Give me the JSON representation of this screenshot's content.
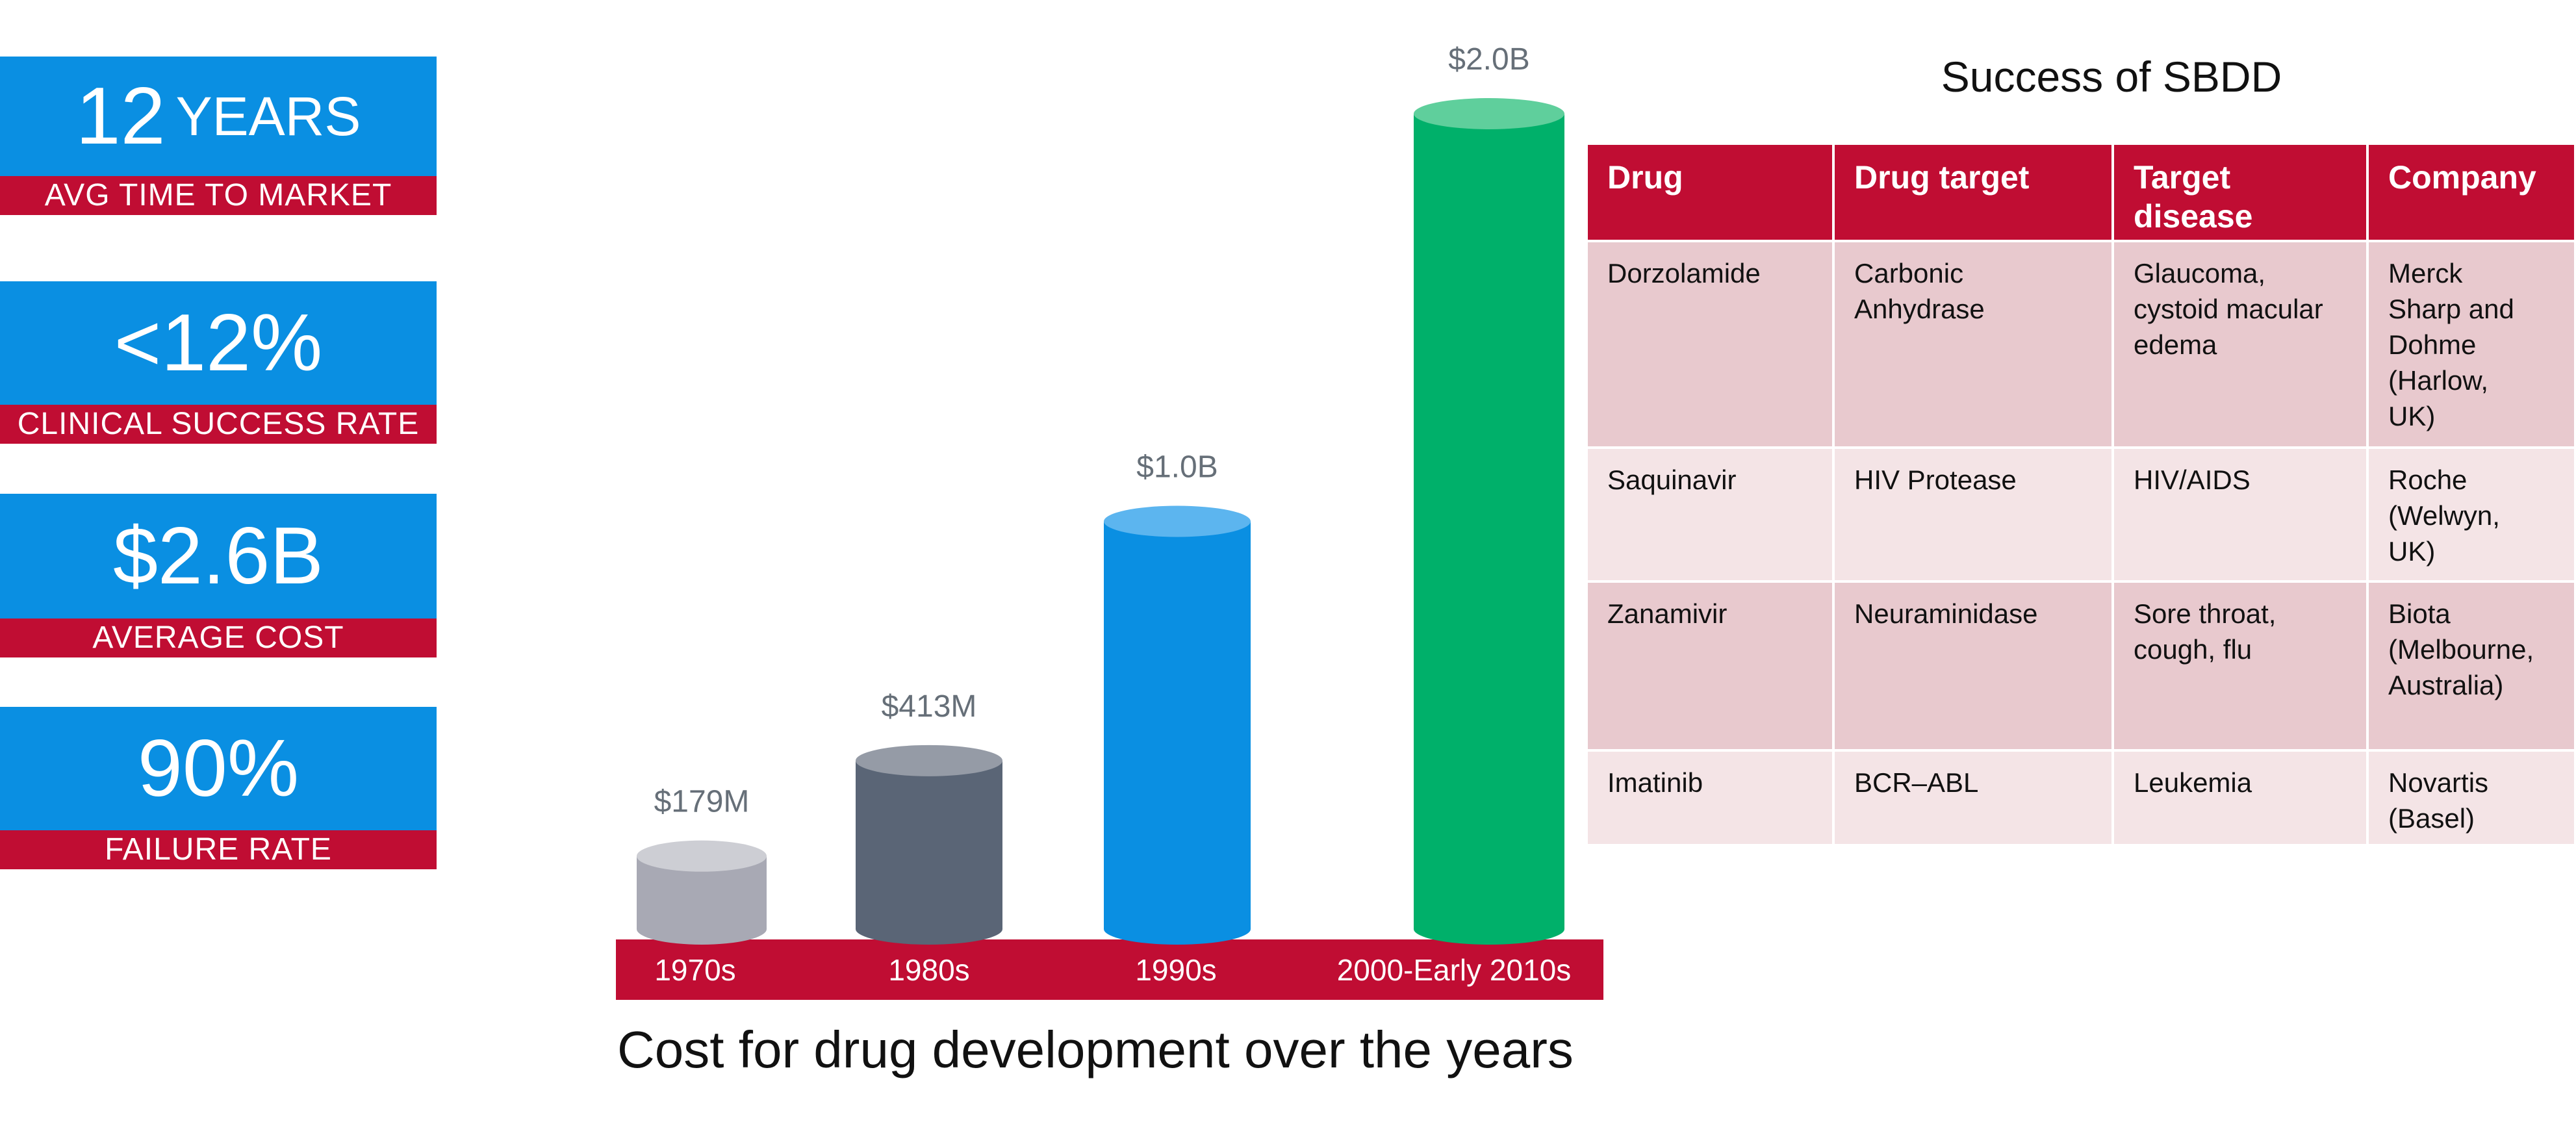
{
  "stats": [
    {
      "value": "12",
      "unit": "YEARS",
      "label": "AVG TIME TO MARKET"
    },
    {
      "value": "<12%",
      "unit": "",
      "label": "CLINICAL SUCCESS RATE"
    },
    {
      "value": "$2.6B",
      "unit": "",
      "label": "AVERAGE COST"
    },
    {
      "value": "90%",
      "unit": "",
      "label": "FAILURE RATE"
    }
  ],
  "chart_data": {
    "type": "bar",
    "title": "Cost for drug development over the years",
    "categories": [
      "1970s",
      "1980s",
      "1990s",
      "2000-Early 2010s"
    ],
    "values": [
      179,
      413,
      1000,
      2000
    ],
    "value_labels": [
      "$179M",
      "$413M",
      "$1.0B",
      "$2.0B"
    ],
    "unit": "million USD",
    "xlabel": "",
    "ylabel": "",
    "ylim": [
      0,
      2000
    ],
    "grid": false,
    "legend": "none",
    "bar_colors": [
      "#a8a9b4",
      "#5a6576",
      "#0a8fe2",
      "#00b06a"
    ],
    "bar_top_colors": [
      "#cdced4",
      "#959ba6",
      "#5cb5ef",
      "#5fcf9c"
    ],
    "axis_band_color": "#c00d33"
  },
  "table": {
    "title": "Success of SBDD",
    "headers": [
      "Drug",
      "Drug target",
      "Target\ndisease",
      "Company"
    ],
    "rows": [
      [
        "Dorzolamide",
        "Carbonic\nAnhydrase",
        "Glaucoma,\ncystoid macular\nedema",
        "Merck\nSharp and\nDohme\n(Harlow,\nUK)"
      ],
      [
        "Saquinavir",
        "HIV Protease",
        "HIV/AIDS",
        "Roche\n(Welwyn,\nUK)"
      ],
      [
        "Zanamivir",
        "Neuraminidase",
        "Sore throat,\ncough, flu",
        "Biota\n(Melbourne,\nAustralia)"
      ],
      [
        "Imatinib",
        "BCR–ABL",
        "Leukemia",
        "Novartis\n(Basel)"
      ]
    ]
  },
  "colors": {
    "blue": "#0a8fe2",
    "red": "#c00d33"
  }
}
